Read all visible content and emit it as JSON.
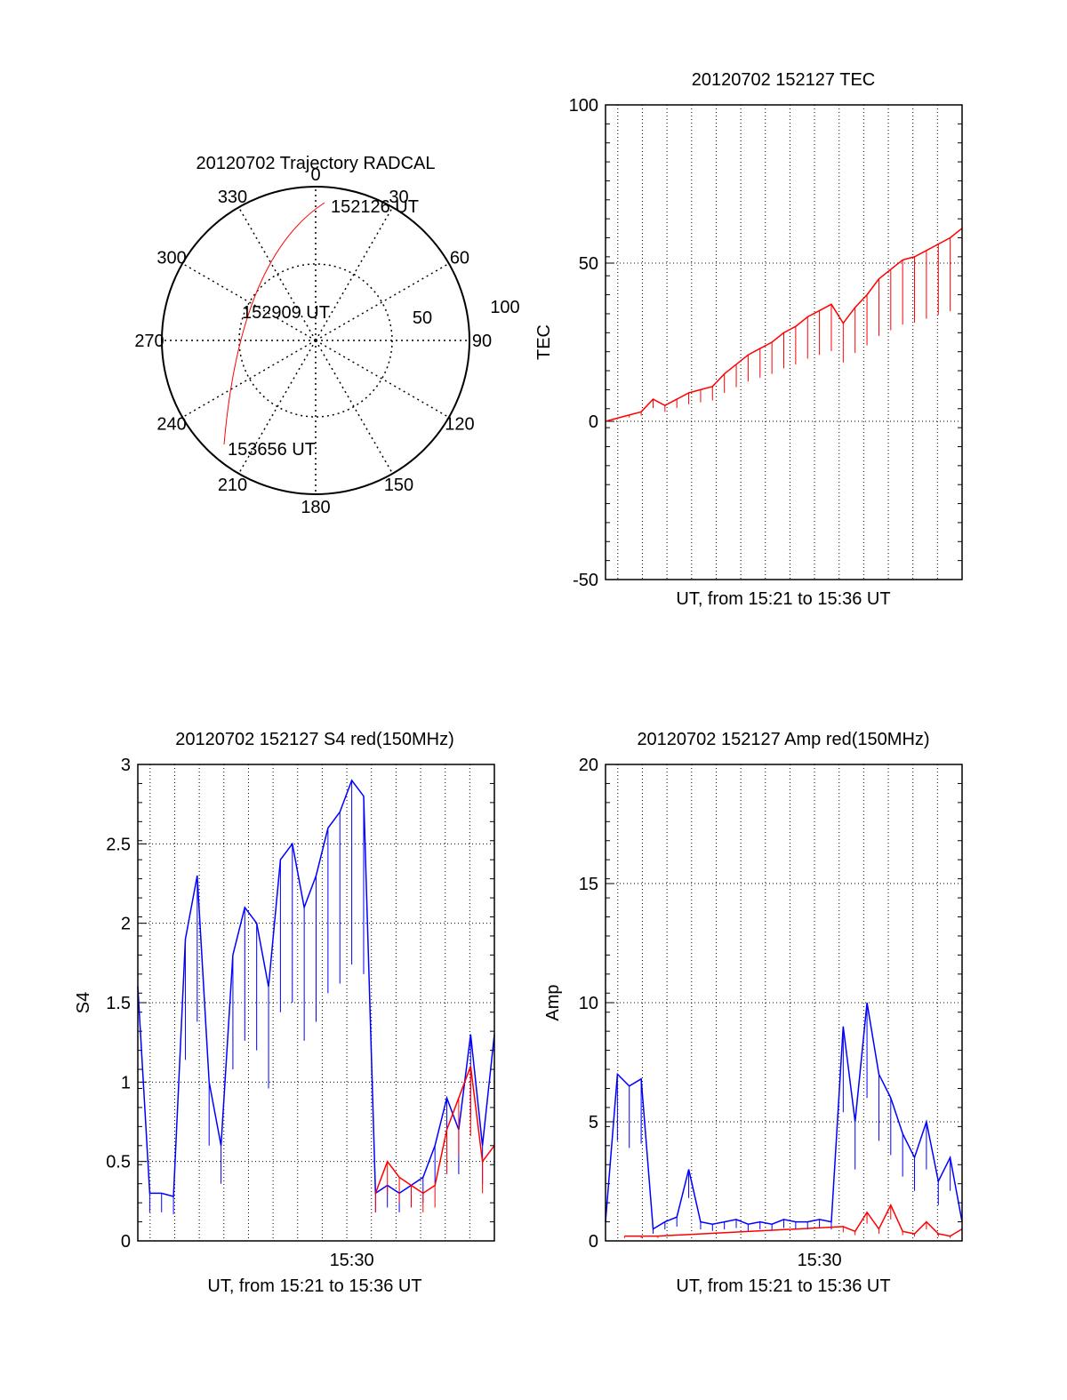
{
  "chart_data": [
    {
      "type": "polar",
      "title": "20120702 Trajectory RADCAL",
      "angle_labels": [
        "0",
        "30",
        "60",
        "90",
        "120",
        "150",
        "180",
        "210",
        "240",
        "270",
        "300",
        "330"
      ],
      "radius_labels": [
        "50",
        "100"
      ],
      "annotations": [
        "152126 UT",
        "152909 UT",
        "153656 UT"
      ],
      "series": [
        {
          "color": "#ff0000",
          "points": [
            [
              28,
              73
            ],
            [
              10,
              67
            ],
            [
              -10,
              60
            ],
            [
              -35,
              62
            ],
            [
              -50,
              67
            ],
            [
              -60,
              72
            ]
          ]
        }
      ]
    },
    {
      "type": "line",
      "title": "20120702 152127 TEC",
      "xlabel": "UT, from 15:21 to 15:36 UT",
      "ylabel": "TEC",
      "ylim": [
        -50,
        100
      ],
      "yticks": [
        "100",
        "50",
        "0",
        "-50"
      ],
      "xlim": [
        0,
        15
      ],
      "series": [
        {
          "color": "#ff0000",
          "x": [
            0,
            0.5,
            1,
            1.5,
            2,
            2.5,
            3,
            3.5,
            4,
            4.5,
            5,
            5.5,
            6,
            6.5,
            7,
            7.5,
            8,
            8.5,
            9,
            9.5,
            10,
            10.5,
            11,
            11.5,
            12,
            12.5,
            13,
            13.5,
            14,
            14.5,
            15
          ],
          "y": [
            0,
            1,
            2,
            3,
            7,
            5,
            7,
            9,
            10,
            11,
            15,
            18,
            21,
            23,
            25,
            28,
            30,
            33,
            35,
            37,
            31,
            36,
            40,
            45,
            48,
            51,
            52,
            54,
            56,
            58,
            61
          ]
        }
      ]
    },
    {
      "type": "line",
      "title": "20120702 152127 S4 red(150MHz)",
      "xlabel": "UT, from 15:21 to 15:36 UT",
      "ylabel": "S4",
      "ylim": [
        0,
        3
      ],
      "yticks": [
        "3",
        "2.5",
        "2",
        "1.5",
        "1",
        "0.5",
        "0"
      ],
      "xticks": [
        "15:30"
      ],
      "xlim": [
        0,
        15
      ],
      "series": [
        {
          "color": "#0000ff",
          "x": [
            0,
            0.5,
            1,
            1.5,
            2,
            2.5,
            3,
            3.5,
            4,
            4.5,
            5,
            5.5,
            6,
            6.5,
            7,
            7.5,
            8,
            8.5,
            9,
            9.5,
            10,
            10.5,
            11,
            11.5,
            12,
            12.5,
            13,
            13.5,
            14,
            14.5,
            15
          ],
          "y": [
            1.6,
            0.3,
            0.3,
            0.28,
            1.9,
            2.3,
            1.0,
            0.6,
            1.8,
            2.1,
            2.0,
            1.6,
            2.4,
            2.5,
            2.1,
            2.3,
            2.6,
            2.7,
            2.9,
            2.8,
            0.3,
            0.35,
            0.3,
            0.35,
            0.4,
            0.6,
            0.9,
            0.7,
            1.3,
            0.6,
            1.3
          ]
        },
        {
          "color": "#ff0000",
          "x": [
            10,
            10.5,
            11,
            11.5,
            12,
            12.5,
            13,
            13.5,
            14,
            14.5,
            15
          ],
          "y": [
            0.3,
            0.5,
            0.4,
            0.35,
            0.3,
            0.35,
            0.7,
            0.9,
            1.1,
            0.5,
            0.6
          ]
        }
      ]
    },
    {
      "type": "line",
      "title": "20120702 152127 Amp red(150MHz)",
      "xlabel": "UT, from 15:21 to 15:36 UT",
      "ylabel": "Amp",
      "ylim": [
        0,
        20
      ],
      "yticks": [
        "20",
        "15",
        "10",
        "5",
        "0"
      ],
      "xticks": [
        "15:30"
      ],
      "xlim": [
        0,
        15
      ],
      "series": [
        {
          "color": "#0000ff",
          "x": [
            0,
            0.5,
            1,
            1.5,
            2,
            2.5,
            3,
            3.5,
            4,
            4.5,
            5,
            5.5,
            6,
            6.5,
            7,
            7.5,
            8,
            8.5,
            9,
            9.5,
            10,
            10.5,
            11,
            11.5,
            12,
            12.5,
            13,
            13.5,
            14,
            14.5,
            15
          ],
          "y": [
            0.8,
            7.0,
            6.5,
            6.8,
            0.5,
            0.8,
            1.0,
            3.0,
            0.8,
            0.7,
            0.8,
            0.9,
            0.7,
            0.8,
            0.7,
            0.9,
            0.8,
            0.8,
            0.9,
            0.8,
            9.0,
            5.0,
            10.0,
            7.0,
            6.0,
            4.5,
            3.5,
            5.0,
            2.5,
            3.5,
            0.8
          ]
        },
        {
          "color": "#ff0000",
          "x": [
            0.8,
            1.5,
            2.2,
            10,
            10.5,
            11,
            11.5,
            12,
            12.5,
            13,
            13.5,
            14,
            14.5,
            15
          ],
          "y": [
            0.2,
            0.2,
            0.2,
            0.6,
            0.4,
            1.2,
            0.5,
            1.5,
            0.4,
            0.3,
            0.8,
            0.3,
            0.2,
            0.5
          ]
        }
      ]
    }
  ]
}
